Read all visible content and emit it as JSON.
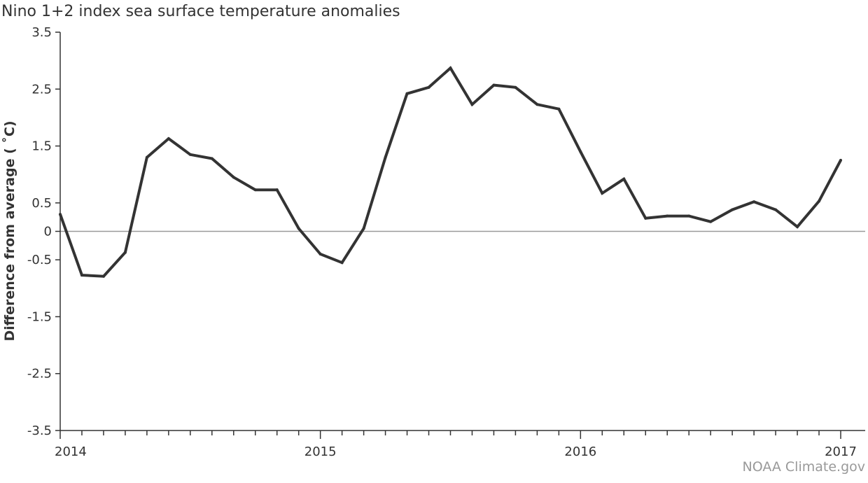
{
  "chart_data": {
    "type": "line",
    "title": "Nino 1+2 index sea surface temperature anomalies",
    "ylabel": "Difference from average ( ˚C)",
    "xlabel": "",
    "credit": "NOAA Climate.gov",
    "ylim": [
      -3.5,
      3.5
    ],
    "yticks": [
      -3.5,
      -2.5,
      -1.5,
      -0.5,
      0,
      0.5,
      1.5,
      2.5,
      3.5
    ],
    "ytick_labels": [
      "-3.5",
      "-2.5",
      "-1.5",
      "-0.5",
      "0",
      "0.5",
      "1.5",
      "2.5",
      "3.5"
    ],
    "xlim": [
      2014,
      2017.0833
    ],
    "xticks": [
      2014,
      2015,
      2016,
      2017
    ],
    "xtick_labels": [
      "2014",
      "2015",
      "2016",
      "2017"
    ],
    "grid": false,
    "zero_line": true,
    "line_color": "#333333",
    "series": [
      {
        "x": [
          2014.0,
          2014.0833,
          2014.1667,
          2014.25,
          2014.3333,
          2014.4167,
          2014.5,
          2014.5833,
          2014.6667,
          2014.75,
          2014.8333,
          2014.9167,
          2015.0,
          2015.0833,
          2015.1667,
          2015.25,
          2015.3333,
          2015.4167,
          2015.5,
          2015.5833,
          2015.6667,
          2015.75,
          2015.8333,
          2015.9167,
          2016.0,
          2016.0833,
          2016.1667,
          2016.25,
          2016.3333,
          2016.4167,
          2016.5,
          2016.5833,
          2016.6667,
          2016.75,
          2016.8333,
          2016.9167,
          2017.0
        ],
        "values": [
          0.3,
          -0.77,
          -0.79,
          -0.37,
          1.3,
          1.63,
          1.35,
          1.28,
          0.95,
          0.73,
          0.73,
          0.05,
          -0.4,
          -0.55,
          0.05,
          1.3,
          2.42,
          2.53,
          2.87,
          2.23,
          2.57,
          2.53,
          2.23,
          2.15,
          1.4,
          0.67,
          0.92,
          0.23,
          0.27,
          0.27,
          0.17,
          0.38,
          0.52,
          0.38,
          0.08,
          0.53,
          1.25
        ]
      }
    ]
  }
}
